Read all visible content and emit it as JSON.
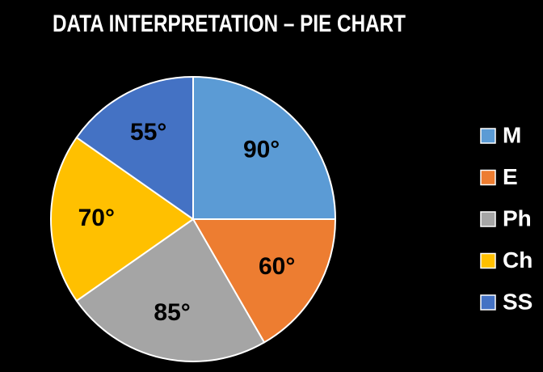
{
  "chart_data": {
    "type": "pie",
    "title": "DATA INTERPRETATION – PIE CHART",
    "categories": [
      "M",
      "E",
      "Ph",
      "Ch",
      "SS"
    ],
    "values": [
      90,
      60,
      85,
      70,
      55
    ],
    "value_labels": [
      "90°",
      "60°",
      "85°",
      "70°",
      "55°"
    ],
    "colors": [
      "#5b9bd5",
      "#ed7d31",
      "#a5a5a5",
      "#ffc000",
      "#4472c4"
    ],
    "legend": "right"
  }
}
